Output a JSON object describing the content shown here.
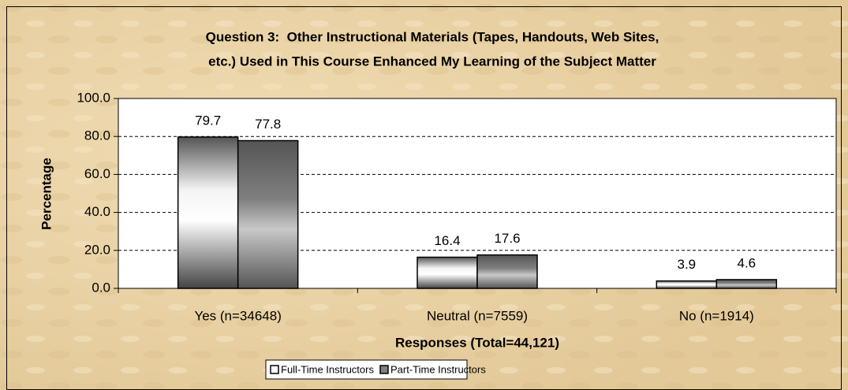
{
  "chart_data": {
    "type": "bar",
    "title": [
      "Question 3:  Other Instructional Materials (Tapes, Handouts, Web Sites,",
      "etc.) Used in This Course Enhanced My Learning of the Subject Matter"
    ],
    "y_label": "Percentage",
    "x_label": "Responses (Total=44,121)",
    "categories": [
      "Yes (n=34648)",
      "Neutral (n=7559)",
      "No (n=1914)"
    ],
    "series": [
      {
        "name": "Full-Time Instructors",
        "color": "#ffffff",
        "values": [
          79.7,
          16.4,
          3.9
        ]
      },
      {
        "name": "Part-Time Instructors",
        "color": "#808080",
        "values": [
          77.8,
          17.6,
          4.6
        ]
      }
    ],
    "ylim": [
      0,
      100
    ],
    "yticks": [
      {
        "value": 0,
        "label": "0.0"
      },
      {
        "value": 20,
        "label": "20.0"
      },
      {
        "value": 40,
        "label": "40.0"
      },
      {
        "value": 60,
        "label": "60.0"
      },
      {
        "value": 80,
        "label": "80.0"
      },
      {
        "value": 100,
        "label": "100.0"
      }
    ],
    "grid": true,
    "legend": "bottom"
  }
}
